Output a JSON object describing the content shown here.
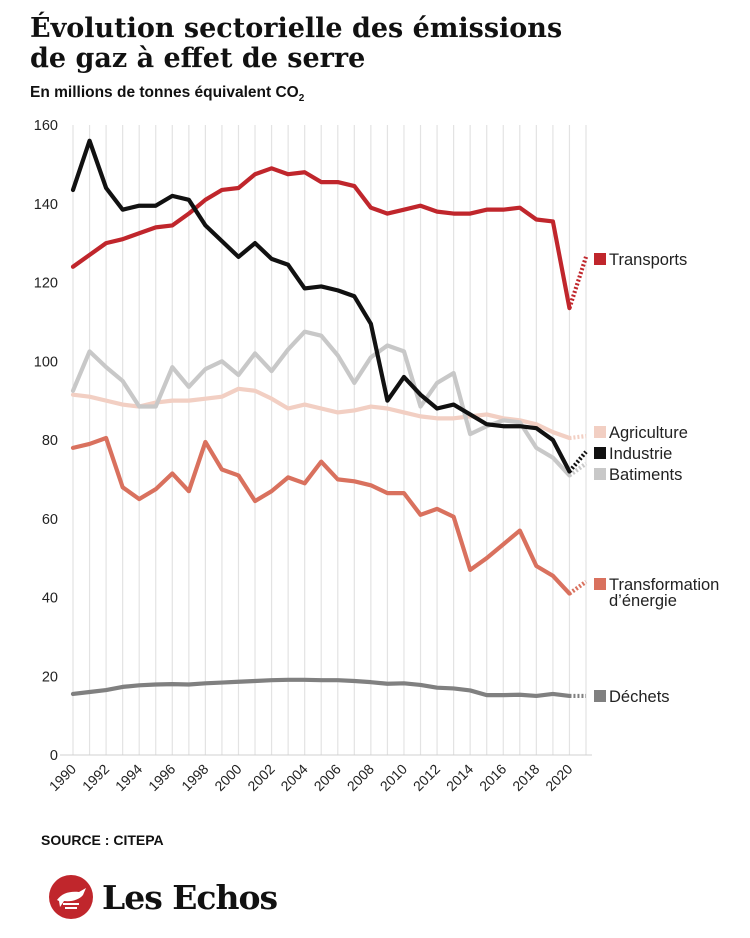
{
  "header": {
    "title": "Évolution sectorielle des émissions de gaz à effet de serre",
    "subtitle_main": "En millions de tonnes équivalent CO",
    "subtitle_sub": "2"
  },
  "footer": {
    "source": "SOURCE : CITEPA",
    "logo_text": "Les Echos"
  },
  "chart_data": {
    "type": "line",
    "x": [
      1990,
      1991,
      1992,
      1993,
      1994,
      1995,
      1996,
      1997,
      1998,
      1999,
      2000,
      2001,
      2002,
      2003,
      2004,
      2005,
      2006,
      2007,
      2008,
      2009,
      2010,
      2011,
      2012,
      2013,
      2014,
      2015,
      2016,
      2017,
      2018,
      2019,
      2020,
      2021
    ],
    "ylim": [
      0,
      160
    ],
    "yticks": [
      0,
      20,
      40,
      60,
      80,
      100,
      120,
      140,
      160
    ],
    "xtick_labels": [
      "1990",
      "1992",
      "1994",
      "1996",
      "1998",
      "2000",
      "2002",
      "2004",
      "2006",
      "2008",
      "2010",
      "2012",
      "2014",
      "2016",
      "2018",
      "2020"
    ],
    "grid": "vertical",
    "legend": "right, at line ends",
    "projection_years": [
      2020,
      2021
    ],
    "series": [
      {
        "name": "Transports",
        "color": "#c0262c",
        "values": [
          124,
          127,
          130,
          131,
          132.5,
          134,
          134.5,
          137.5,
          141,
          143.5,
          144,
          147.5,
          149,
          147.5,
          148,
          145.5,
          145.5,
          144.5,
          139,
          137.5,
          138.5,
          139.5,
          138,
          137.5,
          137.5,
          138.5,
          138.5,
          139,
          136,
          135.5,
          113.5,
          126.5
        ]
      },
      {
        "name": "Industrie",
        "color": "#111111",
        "values": [
          143.5,
          156,
          144,
          138.5,
          139.5,
          139.5,
          142,
          141,
          134.5,
          130.5,
          126.5,
          130,
          126,
          124.5,
          118.5,
          119,
          118,
          116.5,
          109.5,
          90,
          96,
          91.5,
          88,
          89,
          86.5,
          84,
          83.5,
          83.5,
          83,
          80,
          72,
          77
        ]
      },
      {
        "name": "Batiments",
        "color": "#c8c8c8",
        "values": [
          92.5,
          102.5,
          98.5,
          95,
          88.5,
          88.5,
          98.5,
          93.5,
          98,
          100,
          96.5,
          102,
          97.5,
          103,
          107.5,
          106.5,
          101.5,
          94.5,
          101,
          104,
          102.5,
          88.5,
          94.5,
          97,
          81.5,
          83.5,
          85,
          84.5,
          78,
          75.5,
          71,
          74
        ]
      },
      {
        "name": "Agriculture",
        "color": "#f2cfc3",
        "values": [
          91.5,
          91,
          90,
          89,
          88.5,
          89.5,
          90,
          90,
          90.5,
          91,
          93,
          92.5,
          90.5,
          88,
          89,
          88,
          87,
          87.5,
          88.5,
          88,
          87,
          86,
          85.5,
          85.5,
          86,
          86.5,
          85.5,
          85,
          84,
          82,
          80.5,
          81
        ]
      },
      {
        "name": "Transformation d'énergie",
        "color": "#d9715e",
        "values": [
          78,
          79,
          80.5,
          68,
          65,
          67.5,
          71.5,
          67,
          79.5,
          72.5,
          71,
          64.5,
          67,
          70.5,
          69,
          74.5,
          70,
          69.5,
          68.5,
          66.5,
          66.5,
          61,
          62.5,
          60.5,
          47,
          50,
          53.5,
          57,
          48,
          45.5,
          41,
          44
        ]
      },
      {
        "name": "Déchets",
        "color": "#808080",
        "values": [
          15.5,
          16,
          16.5,
          17.3,
          17.7,
          17.9,
          18,
          17.9,
          18.2,
          18.4,
          18.6,
          18.8,
          19,
          19.1,
          19.1,
          19,
          19,
          18.8,
          18.5,
          18.1,
          18.2,
          17.8,
          17.1,
          16.9,
          16.4,
          15.2,
          15.2,
          15.3,
          15,
          15.5,
          15,
          15
        ]
      }
    ],
    "legend_labels": [
      {
        "series": "Transports",
        "lines": [
          "Transports"
        ]
      },
      {
        "series": "Agriculture",
        "lines": [
          "Agriculture"
        ]
      },
      {
        "series": "Industrie",
        "lines": [
          "Industrie"
        ]
      },
      {
        "series": "Batiments",
        "lines": [
          "Batiments"
        ]
      },
      {
        "series": "Transformation d'énergie",
        "lines": [
          "Transformation",
          "d’énergie"
        ]
      },
      {
        "series": "Déchets",
        "lines": [
          "Déchets"
        ]
      }
    ]
  }
}
